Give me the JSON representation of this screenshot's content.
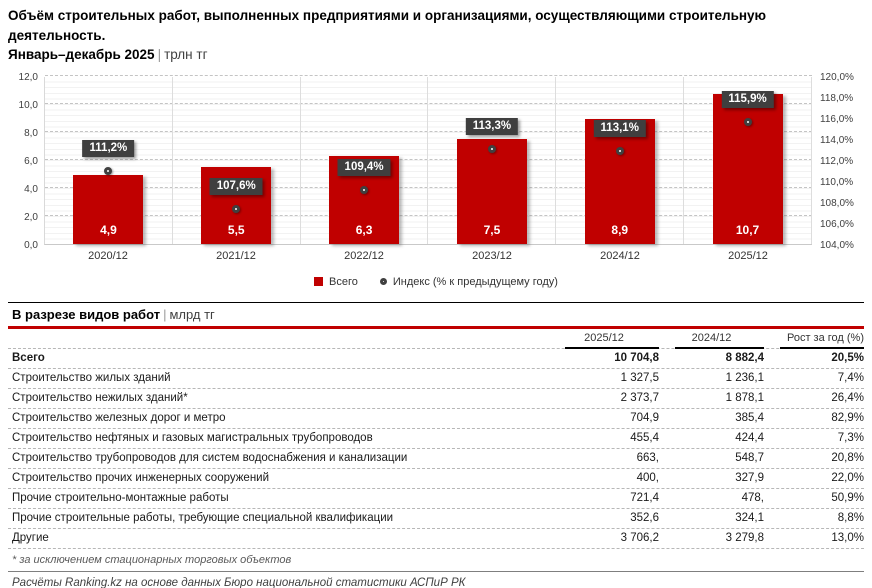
{
  "title": {
    "line1": "Объём строительных работ, выполненных предприятиями и организациями, осуществляющими строительную деятельность.",
    "line2_period": "Январь–декабрь 2025",
    "line2_sep": "|",
    "line2_unit": "трлн тг"
  },
  "colors": {
    "bar_red": "#C00000",
    "label_box": "#3F3F3F",
    "accent_line_red": "#C00000"
  },
  "chart_data": {
    "type": "bar",
    "categories": [
      "2020/12",
      "2021/12",
      "2022/12",
      "2023/12",
      "2024/12",
      "2025/12"
    ],
    "series": [
      {
        "name": "Всего",
        "type": "bar",
        "values": [
          4.9,
          5.5,
          6.3,
          7.5,
          8.9,
          10.7
        ],
        "labels": [
          "4,9",
          "5,5",
          "6,3",
          "7,5",
          "8,9",
          "10,7"
        ],
        "color": "#C00000",
        "axis": "left"
      },
      {
        "name": "Индекс (% к предыдущему году)",
        "type": "marker",
        "values": [
          111.2,
          107.6,
          109.4,
          113.3,
          113.1,
          115.9
        ],
        "labels": [
          "111,2%",
          "107,6%",
          "109,4%",
          "113,3%",
          "113,1%",
          "115,9%"
        ],
        "color": "#404040",
        "axis": "right"
      }
    ],
    "left_axis": {
      "min": 0,
      "max": 12,
      "step": 2,
      "ticks": [
        "0,0",
        "2,0",
        "4,0",
        "6,0",
        "8,0",
        "10,0",
        "12,0"
      ]
    },
    "right_axis": {
      "min": 104,
      "max": 120,
      "step": 2,
      "ticks": [
        "104,0%",
        "106,0%",
        "108,0%",
        "110,0%",
        "112,0%",
        "114,0%",
        "116,0%",
        "118,0%",
        "120,0%"
      ]
    },
    "grid": "major-dashed",
    "legend_position": "bottom",
    "legend": [
      {
        "label": "Всего",
        "marker": "square"
      },
      {
        "label": "Индекс (% к предыдущему году)",
        "marker": "circle"
      }
    ]
  },
  "table": {
    "section_title": "В разрезе видов работ",
    "section_sep": "|",
    "section_unit": "млрд тг",
    "columns": [
      "2025/12",
      "2024/12",
      "Рост за год (%)"
    ],
    "rows": [
      {
        "name": "Всего",
        "v2025": "10 704,8",
        "v2024": "8 882,4",
        "growth": "20,5%",
        "bold": true
      },
      {
        "name": "Строительство жилых зданий",
        "v2025": "1 327,5",
        "v2024": "1 236,1",
        "growth": "7,4%",
        "bold": false
      },
      {
        "name": "Строительство нежилых зданий*",
        "v2025": "2 373,7",
        "v2024": "1 878,1",
        "growth": "26,4%",
        "bold": false
      },
      {
        "name": "Строительство железных дорог и метро",
        "v2025": "704,9",
        "v2024": "385,4",
        "growth": "82,9%",
        "bold": false
      },
      {
        "name": "Строительство нефтяных и газовых магистральных трубопроводов",
        "v2025": "455,4",
        "v2024": "424,4",
        "growth": "7,3%",
        "bold": false
      },
      {
        "name": "Строительство трубопроводов для систем водоснабжения и канализации",
        "v2025": "663,",
        "v2024": "548,7",
        "growth": "20,8%",
        "bold": false
      },
      {
        "name": "Строительство прочих инженерных сооружений",
        "v2025": "400,",
        "v2024": "327,9",
        "growth": "22,0%",
        "bold": false
      },
      {
        "name": "Прочие строительно-монтажные работы",
        "v2025": "721,4",
        "v2024": "478,",
        "growth": "50,9%",
        "bold": false
      },
      {
        "name": "Прочие строительные работы, требующие специальной квалификации",
        "v2025": "352,6",
        "v2024": "324,1",
        "growth": "8,8%",
        "bold": false
      },
      {
        "name": "Другие",
        "v2025": "3 706,2",
        "v2024": "3 279,8",
        "growth": "13,0%",
        "bold": false
      }
    ],
    "footnote": "* за исключением стационарных торговых объектов",
    "source": "Расчёты Ranking.kz на основе данных Бюро национальной статистики АСПиР РК"
  }
}
